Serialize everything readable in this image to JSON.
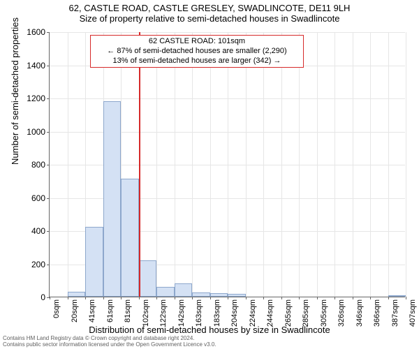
{
  "title": {
    "line1": "62, CASTLE ROAD, CASTLE GRESLEY, SWADLINCOTE, DE11 9LH",
    "line2": "Size of property relative to semi-detached houses in Swadlincote"
  },
  "chart": {
    "type": "histogram",
    "ylabel": "Number of semi-detached properties",
    "xlabel": "Distribution of semi-detached houses by size in Swadlincote",
    "ylim": [
      0,
      1600
    ],
    "ytick_step": 200,
    "yticks": [
      0,
      200,
      400,
      600,
      800,
      1000,
      1200,
      1400,
      1600
    ],
    "xticks": [
      "0sqm",
      "20sqm",
      "41sqm",
      "61sqm",
      "81sqm",
      "102sqm",
      "122sqm",
      "142sqm",
      "163sqm",
      "183sqm",
      "204sqm",
      "224sqm",
      "244sqm",
      "265sqm",
      "285sqm",
      "305sqm",
      "326sqm",
      "346sqm",
      "366sqm",
      "387sqm",
      "407sqm"
    ],
    "bars": [
      0,
      30,
      420,
      1180,
      710,
      220,
      60,
      80,
      25,
      22,
      18,
      0,
      0,
      0,
      0,
      0,
      0,
      0,
      0,
      5
    ],
    "bar_color": "#d4e1f4",
    "bar_border_color": "#8da7cc",
    "grid_color": "#e6e6e6",
    "axis_color": "#666666",
    "background_color": "#ffffff",
    "reference_line": {
      "position_index": 5,
      "color": "#d62a2a"
    },
    "annotation": {
      "line1": "62 CASTLE ROAD: 101sqm",
      "line2": "← 87% of semi-detached houses are smaller (2,290)",
      "line3": "13% of semi-detached houses are larger (342) →",
      "border_color": "#d62a2a",
      "background_color": "#ffffff",
      "fontsize": 11
    }
  },
  "footer": {
    "line1": "Contains HM Land Registry data © Crown copyright and database right 2024.",
    "line2": "Contains public sector information licensed under the Open Government Licence v3.0."
  }
}
